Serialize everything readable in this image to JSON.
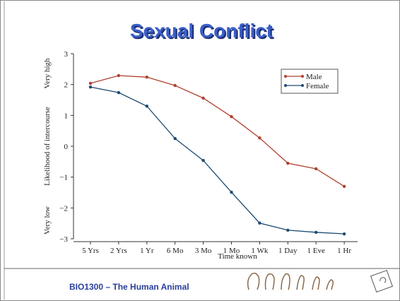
{
  "chart_data": {
    "type": "line",
    "title": "Sexual Conflict",
    "x_label": "Time known",
    "y_label": "Likelihood of intercourse",
    "y_high_label": "Very high",
    "y_low_label": "Very low",
    "categories": [
      "5 Yrs",
      "2 Yrs",
      "1 Yr",
      "6 Mo",
      "3 Mo",
      "1 Mo",
      "1 Wk",
      "1 Day",
      "1 Eve",
      "1 Hr"
    ],
    "series": [
      {
        "name": "Male",
        "color": "#b0402f",
        "values": [
          2.04,
          2.29,
          2.24,
          1.97,
          1.56,
          0.96,
          0.27,
          -0.55,
          -0.73,
          -1.3
        ]
      },
      {
        "name": "Female",
        "color": "#1d4a72",
        "values": [
          1.92,
          1.74,
          1.3,
          0.25,
          -0.46,
          -1.49,
          -2.49,
          -2.72,
          -2.79,
          -2.84
        ]
      }
    ],
    "ylim": [
      -3,
      3
    ],
    "yticks": [
      {
        "value": -3,
        "label": "−3"
      },
      {
        "value": -2,
        "label": "−2"
      },
      {
        "value": -1,
        "label": "−1"
      },
      0,
      1,
      2,
      3
    ],
    "legend": "top-right"
  },
  "footer": {
    "text": "BIO1300 – The Human Animal"
  }
}
